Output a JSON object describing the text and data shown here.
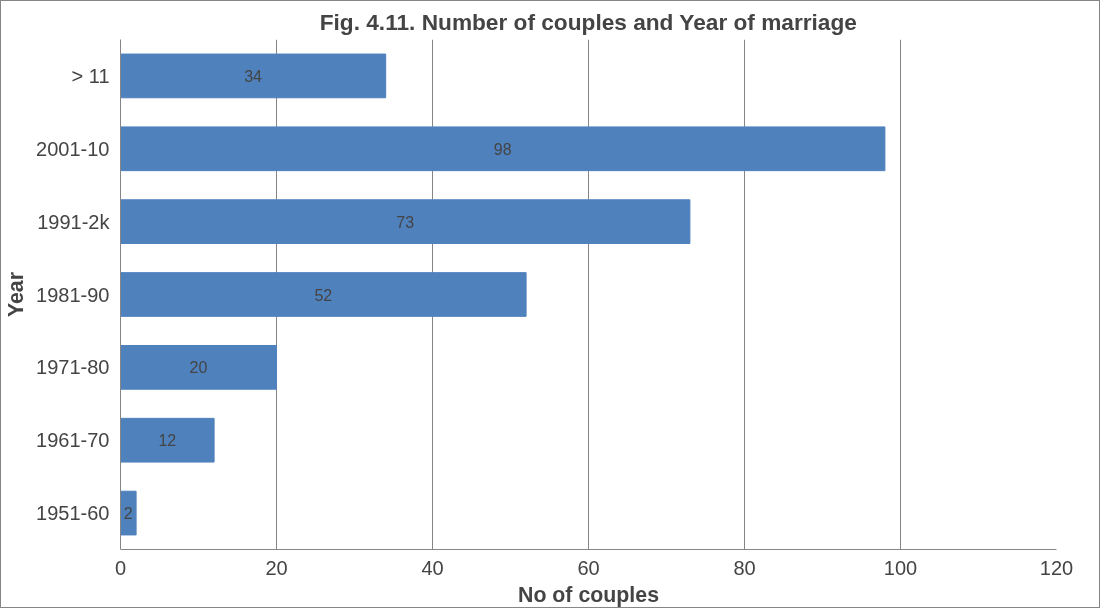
{
  "chart_data": {
    "type": "bar",
    "orientation": "horizontal",
    "title": "Fig. 4.11. Number of couples and Year of marriage",
    "xlabel": "No of couples",
    "ylabel": "Year",
    "categories": [
      "> 11",
      "2001-10",
      "1991-2k",
      "1981-90",
      "1971-80",
      "1961-70",
      "1951-60"
    ],
    "values": [
      34,
      98,
      73,
      52,
      20,
      12,
      2
    ],
    "color": "#4f81bd",
    "xlim": [
      0,
      120
    ],
    "xticks": [
      0,
      20,
      40,
      60,
      80,
      100,
      120
    ],
    "grid": "x",
    "data_labels": true
  }
}
